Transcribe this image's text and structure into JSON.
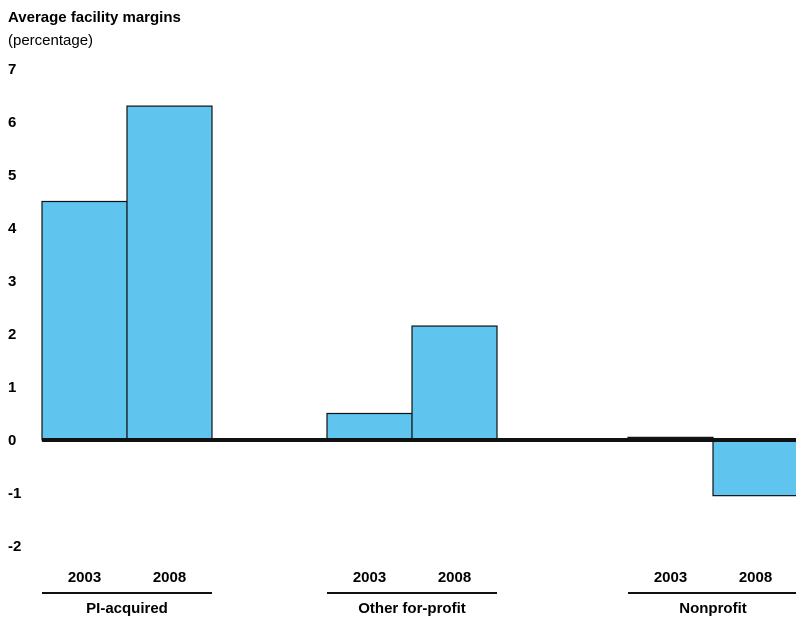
{
  "chart_data": {
    "type": "bar",
    "title": "Average facility margins",
    "subtitle": "(percentage)",
    "ylim": [
      -2,
      7
    ],
    "yticks": [
      "7",
      "6",
      "5",
      "4",
      "3",
      "2",
      "1",
      "0",
      "-1",
      "-2"
    ],
    "grid": false,
    "bar_color": "#5FC4EE",
    "groups": [
      {
        "name": "PI-acquired",
        "bars": [
          {
            "category": "2003",
            "value": 4.5
          },
          {
            "category": "2008",
            "value": 6.3
          }
        ]
      },
      {
        "name": "Other for-profit",
        "bars": [
          {
            "category": "2003",
            "value": 0.5
          },
          {
            "category": "2008",
            "value": 2.15
          }
        ]
      },
      {
        "name": "Nonprofit",
        "bars": [
          {
            "category": "2003",
            "value": 0.05
          },
          {
            "category": "2008",
            "value": -1.05
          }
        ]
      }
    ]
  }
}
